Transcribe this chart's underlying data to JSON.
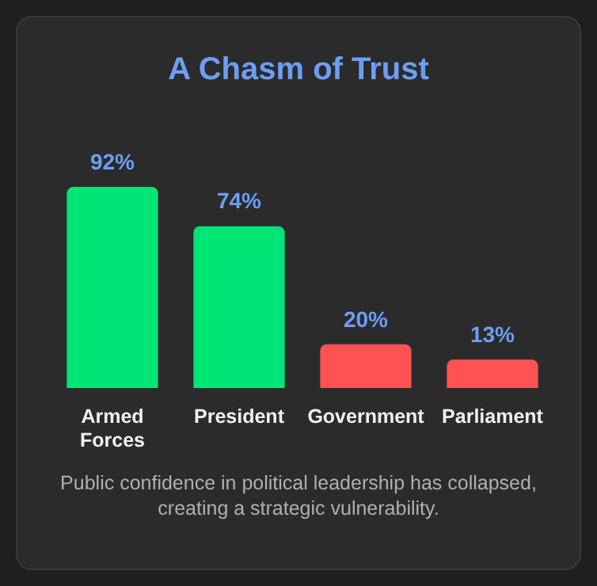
{
  "chart_data": {
    "type": "bar",
    "title": "A Chasm of Trust",
    "categories": [
      "Armed Forces",
      "President",
      "Government",
      "Parliament"
    ],
    "values": [
      92,
      74,
      20,
      13
    ],
    "colors": [
      "#00e676",
      "#00e676",
      "#ff5252",
      "#ff5252"
    ],
    "value_labels": [
      "92%",
      "74%",
      "20%",
      "13%"
    ],
    "annotations": [
      "Public confidence in political leadership has collapsed, creating a strategic vulnerability."
    ]
  }
}
